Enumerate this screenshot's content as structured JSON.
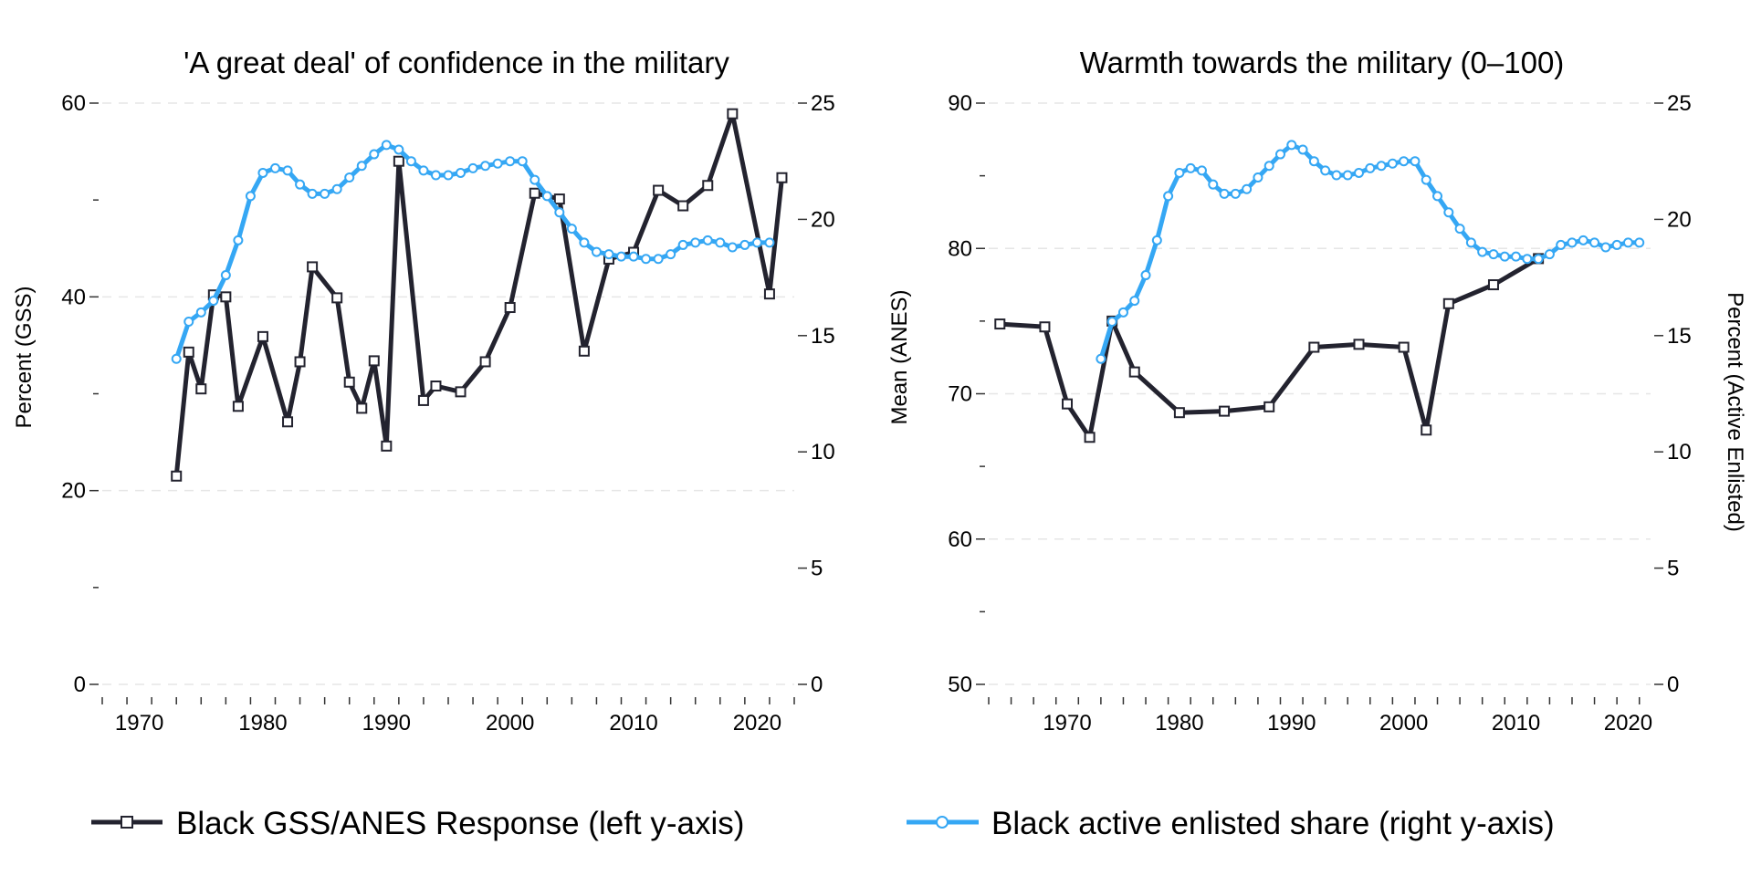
{
  "colors": {
    "black_series": "#23232f",
    "blue_series": "#35a7f4",
    "grid": "#e6e6e6",
    "axis": "#333333",
    "background": "#ffffff"
  },
  "legend": {
    "black_label": "Black GSS/ANES Response (left y-axis)",
    "blue_label": "Black active enlisted share (right y-axis)",
    "placement": "bottom"
  },
  "chart_data": [
    {
      "type": "line",
      "title": "'A great deal' of confidence in the military",
      "ylabel": "Percent (GSS)",
      "y2label": "",
      "xlim": [
        1967,
        2023
      ],
      "xticks": [
        1970,
        1980,
        1990,
        2000,
        2010,
        2020
      ],
      "xticklabels": [
        "1970",
        "1980",
        "1990",
        "2000",
        "2010",
        "2020"
      ],
      "ylim": [
        0,
        60
      ],
      "yticks": [
        0,
        20,
        40,
        60
      ],
      "yticklabels": [
        "0",
        "20",
        "40",
        "60"
      ],
      "yminorticks": [
        10,
        30,
        50
      ],
      "y2lim": [
        0,
        25
      ],
      "y2ticks": [
        0,
        5,
        10,
        15,
        20,
        25
      ],
      "y2ticklabels": [
        "0",
        "5",
        "10",
        "15",
        "20",
        "25"
      ],
      "grid": true,
      "series": [
        {
          "key": "black",
          "axis": "left",
          "marker": "square",
          "x": [
            1973,
            1974,
            1975,
            1976,
            1977,
            1978,
            1980,
            1982,
            1983,
            1984,
            1986,
            1987,
            1988,
            1989,
            1990,
            1991,
            1993,
            1994,
            1996,
            1998,
            2000,
            2002,
            2004,
            2006,
            2008,
            2010,
            2012,
            2014,
            2016,
            2018,
            2021,
            2022
          ],
          "y": [
            21.5,
            34.3,
            30.5,
            40.2,
            40.0,
            28.7,
            35.9,
            27.1,
            33.3,
            43.1,
            39.9,
            31.2,
            28.5,
            33.4,
            24.6,
            54.0,
            29.3,
            30.8,
            30.2,
            33.3,
            38.9,
            50.7,
            50.1,
            34.4,
            43.9,
            44.6,
            51.0,
            49.4,
            51.5,
            58.9,
            40.3,
            52.3
          ]
        },
        {
          "key": "blue",
          "axis": "right",
          "marker": "circle",
          "x": [
            1973,
            1974,
            1975,
            1976,
            1977,
            1978,
            1979,
            1980,
            1981,
            1982,
            1983,
            1984,
            1985,
            1986,
            1987,
            1988,
            1989,
            1990,
            1991,
            1992,
            1993,
            1994,
            1995,
            1996,
            1997,
            1998,
            1999,
            2000,
            2001,
            2002,
            2003,
            2004,
            2005,
            2006,
            2007,
            2008,
            2009,
            2010,
            2011,
            2012,
            2013,
            2014,
            2015,
            2016,
            2017,
            2018,
            2019,
            2020,
            2021
          ],
          "y": [
            14.0,
            15.6,
            16.0,
            16.5,
            17.6,
            19.1,
            21.0,
            22.0,
            22.2,
            22.1,
            21.5,
            21.1,
            21.1,
            21.3,
            21.8,
            22.3,
            22.8,
            23.2,
            23.0,
            22.5,
            22.1,
            21.9,
            21.9,
            22.0,
            22.2,
            22.3,
            22.4,
            22.5,
            22.5,
            21.7,
            21.0,
            20.3,
            19.6,
            19.0,
            18.6,
            18.5,
            18.4,
            18.4,
            18.3,
            18.3,
            18.5,
            18.9,
            19.0,
            19.1,
            19.0,
            18.8,
            18.9,
            19.0,
            19.0
          ]
        }
      ]
    },
    {
      "type": "line",
      "title": "Warmth towards the military (0–100)",
      "ylabel": "Mean (ANES)",
      "y2label": "Percent (Active Enlisted)",
      "xlim": [
        1963,
        2022
      ],
      "xticks": [
        1970,
        1980,
        1990,
        2000,
        2010,
        2020
      ],
      "xticklabels": [
        "1970",
        "1980",
        "1990",
        "2000",
        "2010",
        "2020"
      ],
      "ylim": [
        50,
        90
      ],
      "yticks": [
        50,
        60,
        70,
        80,
        90
      ],
      "yticklabels": [
        "50",
        "60",
        "70",
        "80",
        "90"
      ],
      "yminorticks": [
        55,
        65,
        75,
        85
      ],
      "y2lim": [
        0,
        25
      ],
      "y2ticks": [
        0,
        5,
        10,
        15,
        20,
        25
      ],
      "y2ticklabels": [
        "0",
        "5",
        "10",
        "15",
        "20",
        "25"
      ],
      "grid": true,
      "series": [
        {
          "key": "black",
          "axis": "left",
          "marker": "square",
          "x": [
            1964,
            1968,
            1970,
            1972,
            1974,
            1976,
            1980,
            1984,
            1988,
            1992,
            1996,
            2000,
            2002,
            2004,
            2008,
            2012
          ],
          "y": [
            74.8,
            74.6,
            69.3,
            67.0,
            75.0,
            71.5,
            68.7,
            68.8,
            69.1,
            73.2,
            73.4,
            73.2,
            67.5,
            76.2,
            77.5,
            79.3
          ]
        },
        {
          "key": "blue",
          "axis": "right",
          "marker": "circle",
          "x": [
            1973,
            1974,
            1975,
            1976,
            1977,
            1978,
            1979,
            1980,
            1981,
            1982,
            1983,
            1984,
            1985,
            1986,
            1987,
            1988,
            1989,
            1990,
            1991,
            1992,
            1993,
            1994,
            1995,
            1996,
            1997,
            1998,
            1999,
            2000,
            2001,
            2002,
            2003,
            2004,
            2005,
            2006,
            2007,
            2008,
            2009,
            2010,
            2011,
            2012,
            2013,
            2014,
            2015,
            2016,
            2017,
            2018,
            2019,
            2020,
            2021
          ],
          "y": [
            14.0,
            15.6,
            16.0,
            16.5,
            17.6,
            19.1,
            21.0,
            22.0,
            22.2,
            22.1,
            21.5,
            21.1,
            21.1,
            21.3,
            21.8,
            22.3,
            22.8,
            23.2,
            23.0,
            22.5,
            22.1,
            21.9,
            21.9,
            22.0,
            22.2,
            22.3,
            22.4,
            22.5,
            22.5,
            21.7,
            21.0,
            20.3,
            19.6,
            19.0,
            18.6,
            18.5,
            18.4,
            18.4,
            18.3,
            18.3,
            18.5,
            18.9,
            19.0,
            19.1,
            19.0,
            18.8,
            18.9,
            19.0,
            19.0
          ]
        }
      ]
    }
  ]
}
